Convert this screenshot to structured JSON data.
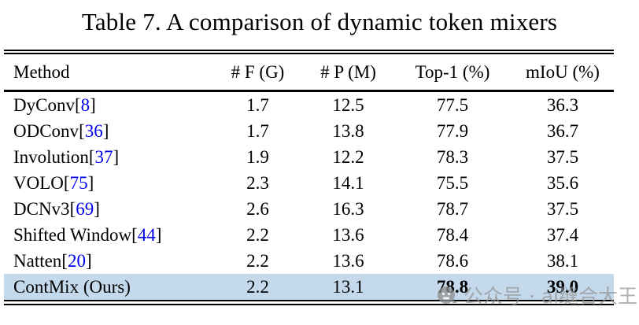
{
  "title": "Table 7. A comparison of dynamic token mixers",
  "table": {
    "headers": [
      "Method",
      "# F (G)",
      "# P (M)",
      "Top-1 (%)",
      "mIoU (%)"
    ],
    "rows": [
      {
        "method": "DyConv",
        "ref": "8",
        "f": "1.7",
        "p": "12.5",
        "top1": "77.5",
        "miou": "36.3",
        "highlight": false,
        "bold_metrics": false
      },
      {
        "method": "ODConv",
        "ref": "36",
        "f": "1.7",
        "p": "13.8",
        "top1": "77.9",
        "miou": "36.7",
        "highlight": false,
        "bold_metrics": false
      },
      {
        "method": "Involution",
        "ref": "37",
        "f": "1.9",
        "p": "12.2",
        "top1": "78.3",
        "miou": "37.5",
        "highlight": false,
        "bold_metrics": false
      },
      {
        "method": "VOLO",
        "ref": "75",
        "f": "2.3",
        "p": "14.1",
        "top1": "75.5",
        "miou": "35.6",
        "highlight": false,
        "bold_metrics": false
      },
      {
        "method": "DCNv3",
        "ref": "69",
        "f": "2.6",
        "p": "16.3",
        "top1": "78.7",
        "miou": "37.5",
        "highlight": false,
        "bold_metrics": false
      },
      {
        "method": "Shifted Window",
        "ref": "44",
        "f": "2.2",
        "p": "13.6",
        "top1": "78.4",
        "miou": "37.4",
        "highlight": false,
        "bold_metrics": false
      },
      {
        "method": "Natten",
        "ref": "20",
        "f": "2.2",
        "p": "13.6",
        "top1": "78.6",
        "miou": "38.1",
        "highlight": false,
        "bold_metrics": false
      },
      {
        "method": "ContMix (Ours)",
        "ref": null,
        "f": "2.2",
        "p": "13.1",
        "top1": "78.8",
        "miou": "39.0",
        "highlight": true,
        "bold_metrics": true
      }
    ]
  },
  "watermark": {
    "icon": "chat-face-icon",
    "text": "公众号 · ai缝合大王"
  },
  "colors": {
    "reference_blue": "#0000ee",
    "highlight_row": "#c4daec",
    "rule_black": "#000000",
    "watermark_gray": "#919191"
  }
}
